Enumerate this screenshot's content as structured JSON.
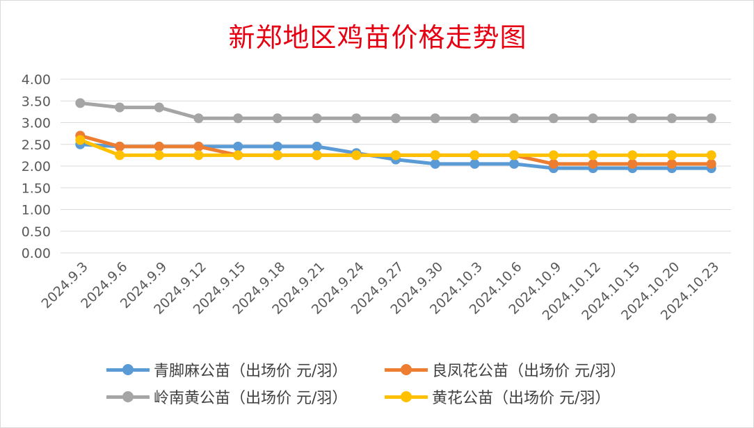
{
  "chart_data": {
    "type": "line",
    "title": "新郑地区鸡苗价格走势图",
    "categories": [
      "2024.9.3",
      "2024.9.6",
      "2024.9.9",
      "2024.9.12",
      "2024.9.15",
      "2024.9.18",
      "2024.9.21",
      "2024.9.24",
      "2024.9.27",
      "2024.9.30",
      "2024.10.3",
      "2024.10.6",
      "2024.10.9",
      "2024.10.12",
      "2024.10.15",
      "2024.10.20",
      "2024.10.23"
    ],
    "ylim": [
      0,
      4
    ],
    "yticks": [
      "0.00",
      "0.50",
      "1.00",
      "1.50",
      "2.00",
      "2.50",
      "3.00",
      "3.50",
      "4.00"
    ],
    "grid": true,
    "legend_position": "bottom",
    "series": [
      {
        "name": "青脚麻公苗（出场价 元/羽）",
        "color": "#5b9bd5",
        "values": [
          2.5,
          2.45,
          2.45,
          2.45,
          2.45,
          2.45,
          2.45,
          2.3,
          2.15,
          2.05,
          2.05,
          2.05,
          1.95,
          1.95,
          1.95,
          1.95,
          1.95
        ]
      },
      {
        "name": "良凤花公苗（出场价 元/羽）",
        "color": "#ed7d31",
        "values": [
          2.7,
          2.45,
          2.45,
          2.45,
          2.25,
          2.25,
          2.25,
          2.25,
          2.25,
          2.25,
          2.25,
          2.25,
          2.05,
          2.05,
          2.05,
          2.05,
          2.05
        ]
      },
      {
        "name": "岭南黄公苗（出场价 元/羽）",
        "color": "#a5a5a5",
        "values": [
          3.45,
          3.35,
          3.35,
          3.1,
          3.1,
          3.1,
          3.1,
          3.1,
          3.1,
          3.1,
          3.1,
          3.1,
          3.1,
          3.1,
          3.1,
          3.1,
          3.1
        ]
      },
      {
        "name": "黄花公苗（出场价 元/羽）",
        "color": "#ffc000",
        "values": [
          2.6,
          2.25,
          2.25,
          2.25,
          2.25,
          2.25,
          2.25,
          2.25,
          2.25,
          2.25,
          2.25,
          2.25,
          2.25,
          2.25,
          2.25,
          2.25,
          2.25
        ]
      }
    ]
  }
}
